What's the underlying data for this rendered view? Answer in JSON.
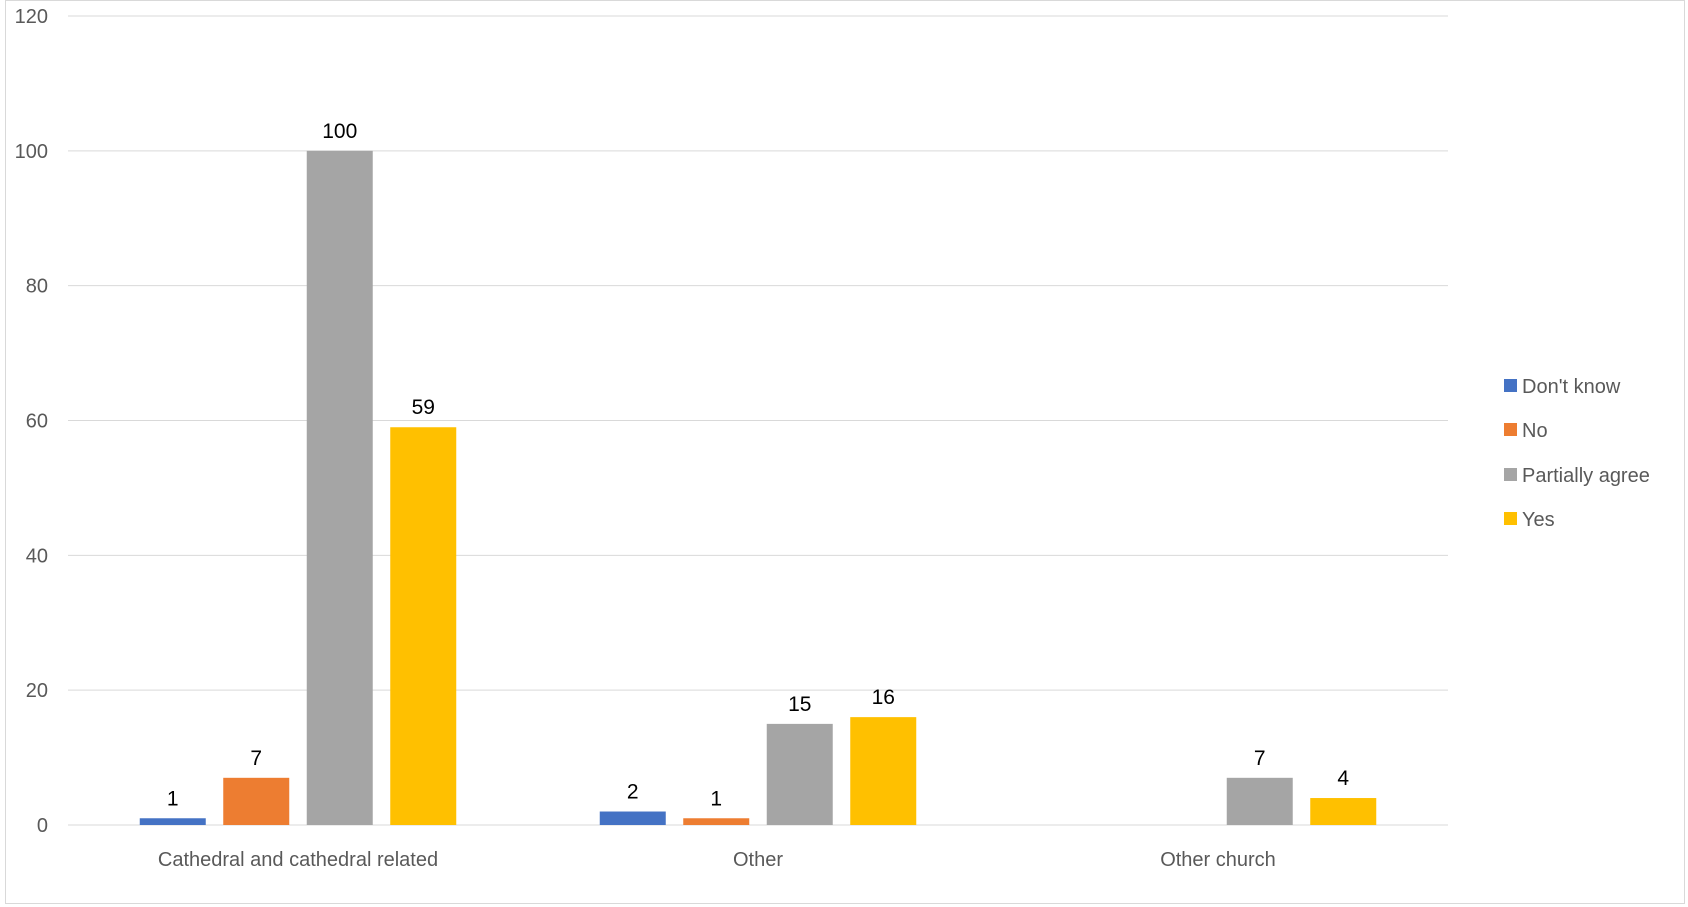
{
  "chart_data": {
    "type": "bar",
    "title": "",
    "xlabel": "",
    "ylabel": "",
    "categories": [
      "Cathedral and cathedral related",
      "Other",
      "Other church"
    ],
    "series": [
      {
        "name": "Don't know",
        "color": "#4472C4",
        "values": [
          1,
          2,
          null
        ]
      },
      {
        "name": "No",
        "color": "#ED7D31",
        "values": [
          7,
          1,
          null
        ]
      },
      {
        "name": "Partially agree",
        "color": "#A5A5A5",
        "values": [
          100,
          15,
          7
        ]
      },
      {
        "name": "Yes",
        "color": "#FFC000",
        "values": [
          59,
          16,
          4
        ]
      }
    ],
    "ylim": [
      0,
      120
    ],
    "yticks": [
      0,
      20,
      40,
      60,
      80,
      100,
      120
    ],
    "grid": true,
    "legend_position": "right",
    "data_labels": true
  }
}
